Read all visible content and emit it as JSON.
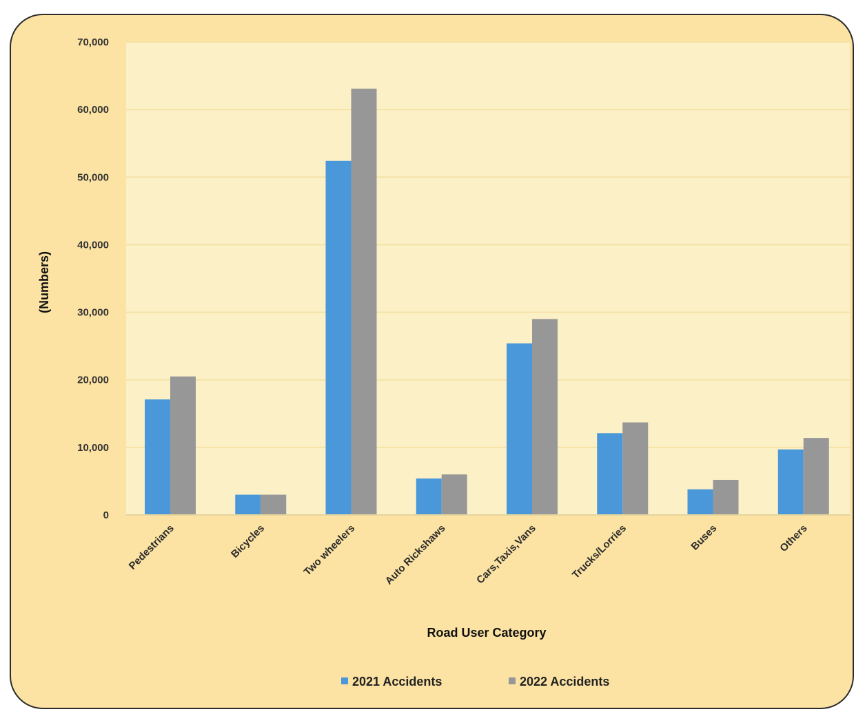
{
  "chart_data": {
    "type": "bar",
    "title": "",
    "xlabel": "Road User Category",
    "ylabel": "(Numbers)",
    "ylim": [
      0,
      70000
    ],
    "yticks": [
      0,
      10000,
      20000,
      30000,
      40000,
      50000,
      60000,
      70000
    ],
    "ytick_labels": [
      "0",
      "10,000",
      "20,000",
      "30,000",
      "40,000",
      "50,000",
      "60,000",
      "70,000"
    ],
    "grid": true,
    "legend_position": "bottom",
    "categories": [
      "Pedestrians",
      "Bicycles",
      "Two wheelers",
      "Auto Rickshaws",
      "Cars,Taxis,Vans",
      "Trucks/Lorries",
      "Buses",
      "Others"
    ],
    "series": [
      {
        "name": "2021 Accidents",
        "color": "#4a98d9",
        "values": [
          17100,
          3000,
          52400,
          5400,
          25400,
          12100,
          3800,
          9700
        ]
      },
      {
        "name": "2022 Accidents",
        "color": "#979797",
        "values": [
          20500,
          3000,
          63100,
          6000,
          29000,
          13700,
          5200,
          11400
        ]
      }
    ]
  },
  "colors": {
    "frame_background": "#fce3a3",
    "plot_background": "#fcf0c7",
    "gridline": "#f4e2a6"
  }
}
